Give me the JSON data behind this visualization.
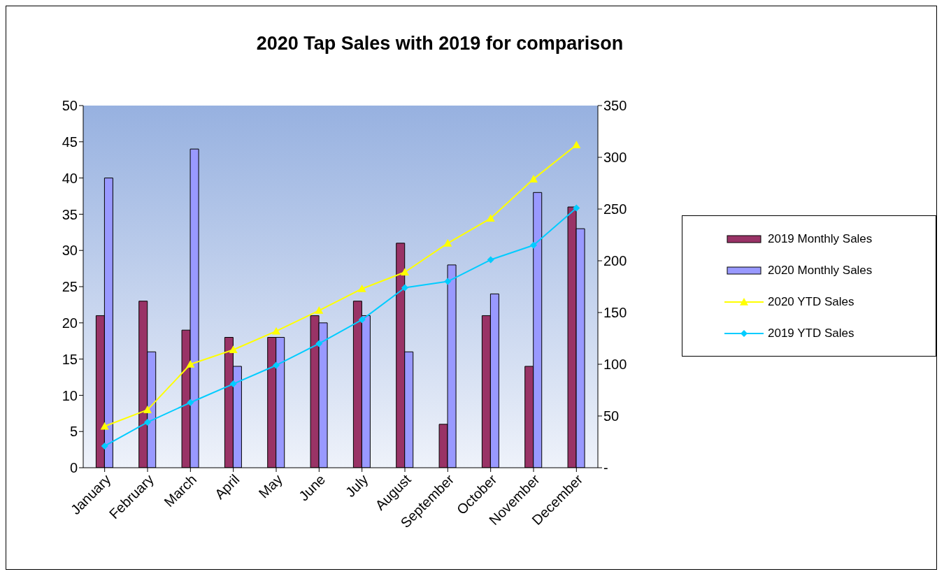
{
  "chart_data": {
    "type": "bar",
    "title": "2020 Tap Sales with 2019 for comparison",
    "categories": [
      "January",
      "February",
      "March",
      "April",
      "May",
      "June",
      "July",
      "August",
      "September",
      "October",
      "November",
      "December"
    ],
    "series": [
      {
        "name": "2019 Monthly Sales",
        "color": "#993366",
        "values": [
          21,
          23,
          19,
          18,
          18,
          21,
          23,
          31,
          6,
          21,
          14,
          36
        ]
      },
      {
        "name": "2020 Monthly Sales",
        "color": "#9999ff",
        "values": [
          40,
          16,
          44,
          14,
          18,
          20,
          21,
          16,
          28,
          24,
          38,
          33
        ]
      },
      {
        "name": "2020 YTD Sales",
        "type": "line",
        "axis": "y2",
        "marker": "triangle",
        "color": "#ffff00",
        "values": [
          40,
          56,
          100,
          114,
          132,
          152,
          173,
          189,
          217,
          241,
          279,
          312
        ]
      },
      {
        "name": "2019 YTD Sales",
        "type": "line",
        "axis": "y2",
        "marker": "diamond",
        "color": "#00ccff",
        "values": [
          21,
          44,
          63,
          81,
          99,
          120,
          143,
          174,
          180,
          201,
          215,
          251
        ]
      }
    ],
    "ylim": [
      0,
      50
    ],
    "yticks": [
      0,
      5,
      10,
      15,
      20,
      25,
      30,
      35,
      40,
      45,
      50
    ],
    "y2lim": [
      0,
      350
    ],
    "y2ticks": [
      {
        "value": 0,
        "label": "-"
      },
      50,
      100,
      150,
      200,
      250,
      300,
      350
    ],
    "grid": false,
    "legend": "right"
  }
}
